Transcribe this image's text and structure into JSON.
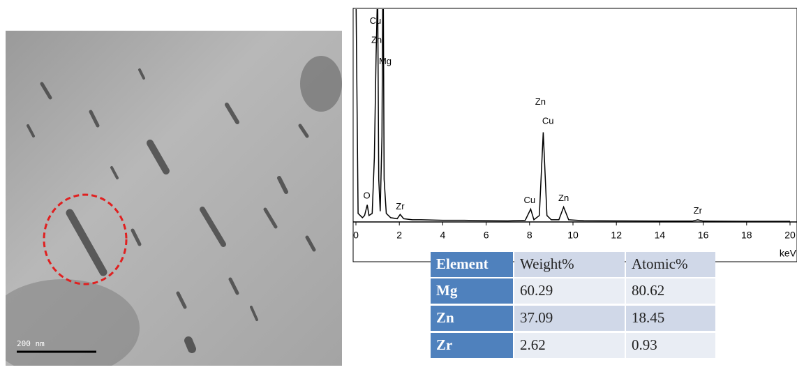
{
  "tem_image": {
    "scale_bar": "200 nm"
  },
  "chart_data": {
    "type": "line",
    "x": [
      0,
      0.1,
      0.2,
      0.3,
      0.4,
      0.52,
      0.6,
      0.75,
      0.85,
      0.93,
      1.0,
      1.05,
      1.12,
      1.2,
      1.25,
      1.3,
      1.4,
      1.6,
      1.9,
      2.04,
      2.2,
      2.6,
      3,
      4,
      5,
      6,
      7,
      7.8,
      8.05,
      8.2,
      8.45,
      8.63,
      8.8,
      9.0,
      9.35,
      9.57,
      9.8,
      10.5,
      12,
      14,
      15.5,
      15.75,
      16,
      18,
      20
    ],
    "values": [
      110,
      4,
      3,
      2,
      3,
      8,
      3,
      4,
      30,
      78,
      110,
      20,
      5,
      40,
      130,
      20,
      4,
      2,
      1.5,
      3.5,
      1.5,
      1,
      1,
      0.8,
      0.8,
      0.6,
      0.5,
      0.8,
      6,
      1,
      3,
      42,
      3,
      1,
      1,
      7,
      1,
      0.6,
      0.5,
      0.4,
      0.4,
      1,
      0.4,
      0.3,
      0.3
    ],
    "color": "#000000",
    "xlim": [
      0,
      20.3
    ],
    "ylim": [
      0,
      100
    ],
    "xticks": [
      0,
      2,
      4,
      6,
      8,
      10,
      12,
      14,
      16,
      18,
      20
    ],
    "x_label": "keV",
    "annotations": [
      {
        "text": "Cu",
        "x": 0.9,
        "y": 94
      },
      {
        "text": "Zn",
        "x": 0.95,
        "y": 85
      },
      {
        "text": "Mg",
        "x": 1.35,
        "y": 75
      },
      {
        "text": "O",
        "x": 0.5,
        "y": 12
      },
      {
        "text": "Zr",
        "x": 2.04,
        "y": 7
      },
      {
        "text": "Zn",
        "x": 8.5,
        "y": 56
      },
      {
        "text": "Cu",
        "x": 8.85,
        "y": 47
      },
      {
        "text": "Cu",
        "x": 8.0,
        "y": 10
      },
      {
        "text": "Zn",
        "x": 9.57,
        "y": 11
      },
      {
        "text": "Zr",
        "x": 15.75,
        "y": 5
      }
    ]
  },
  "table": {
    "header": [
      "Element",
      "Weight%",
      "Atomic%"
    ],
    "rows": [
      [
        "Mg",
        "60.29",
        "80.62"
      ],
      [
        "Zn",
        "37.09",
        "18.45"
      ],
      [
        "Zr",
        "2.62",
        "0.93"
      ]
    ]
  }
}
